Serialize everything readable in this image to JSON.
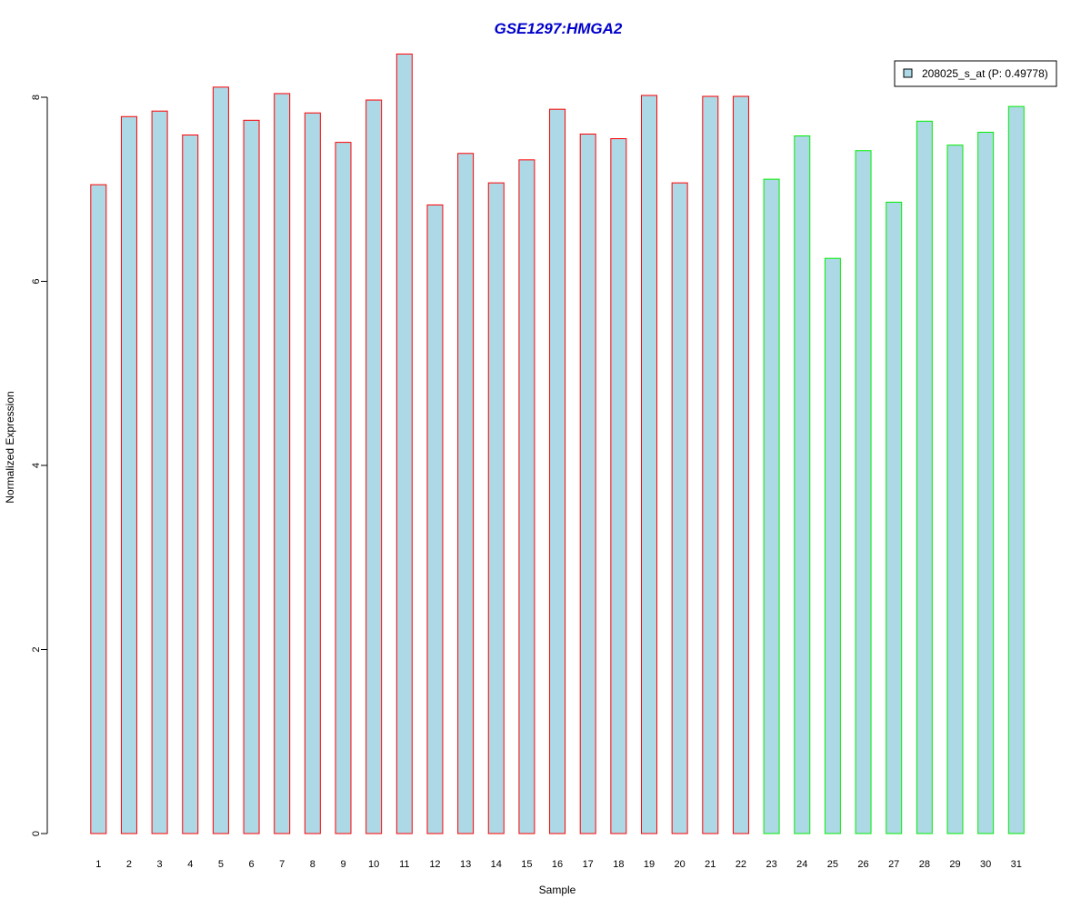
{
  "chart_data": {
    "type": "bar",
    "title": "GSE1297:HMGA2",
    "xlabel": "Sample",
    "ylabel": "Normalized Expression",
    "ylim": [
      0,
      8.5
    ],
    "yticks": [
      0,
      2,
      4,
      6,
      8
    ],
    "grid": false,
    "legend_position": "top-right",
    "legend_label": "208025_s_at (P: 0.49778)",
    "fill_color": "#add8e6",
    "group_colors": {
      "group1": "#ff0000",
      "group2": "#00ee00"
    },
    "categories": [
      "1",
      "2",
      "3",
      "4",
      "5",
      "6",
      "7",
      "8",
      "9",
      "10",
      "11",
      "12",
      "13",
      "14",
      "15",
      "16",
      "17",
      "18",
      "19",
      "20",
      "21",
      "22",
      "23",
      "24",
      "25",
      "26",
      "27",
      "28",
      "29",
      "30",
      "31"
    ],
    "values": [
      7.05,
      7.79,
      7.85,
      7.59,
      8.11,
      7.75,
      8.04,
      7.83,
      7.51,
      7.97,
      8.47,
      6.83,
      7.39,
      7.07,
      7.32,
      7.87,
      7.6,
      7.55,
      8.02,
      7.07,
      8.01,
      8.01,
      7.11,
      7.58,
      6.25,
      7.42,
      6.86,
      7.74,
      7.48,
      7.62,
      7.9
    ],
    "groups": [
      "group1",
      "group1",
      "group1",
      "group1",
      "group1",
      "group1",
      "group1",
      "group1",
      "group1",
      "group1",
      "group1",
      "group1",
      "group1",
      "group1",
      "group1",
      "group1",
      "group1",
      "group1",
      "group1",
      "group1",
      "group1",
      "group1",
      "group2",
      "group2",
      "group2",
      "group2",
      "group2",
      "group2",
      "group2",
      "group2",
      "group2"
    ]
  }
}
